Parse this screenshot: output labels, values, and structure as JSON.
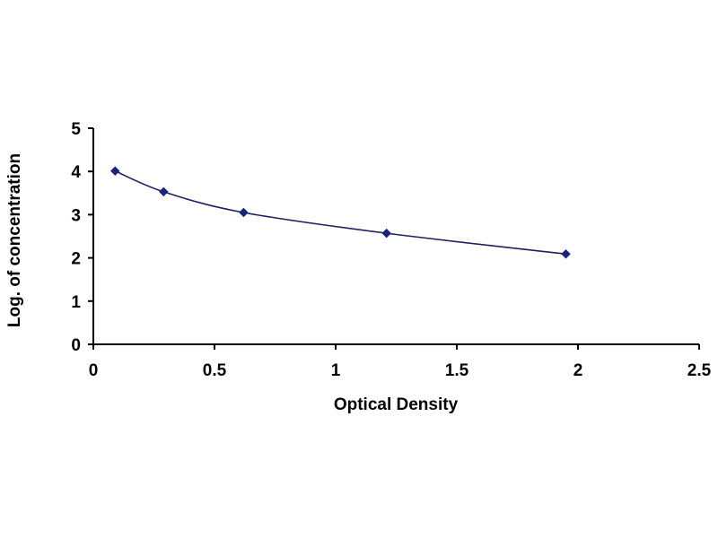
{
  "chart_data": {
    "type": "line",
    "title": "",
    "xlabel": "Optical Density",
    "ylabel": "Log. of concentration",
    "xlim": [
      0,
      2.5
    ],
    "ylim": [
      0,
      5
    ],
    "x_ticks": [
      "0",
      "0.5",
      "1",
      "1.5",
      "2",
      "2.5"
    ],
    "y_ticks": [
      "0",
      "1",
      "2",
      "3",
      "4",
      "5"
    ],
    "grid": false,
    "legend": "none",
    "series": [
      {
        "x": [
          0.09,
          0.29,
          0.62,
          1.21,
          1.95
        ],
        "y": [
          4.01,
          3.53,
          3.05,
          2.57,
          2.09
        ],
        "marker": "diamond",
        "smooth": true
      }
    ],
    "colors": {
      "line": "#1f1f5f",
      "marker": "#1a237e",
      "axis": "#000000"
    }
  }
}
